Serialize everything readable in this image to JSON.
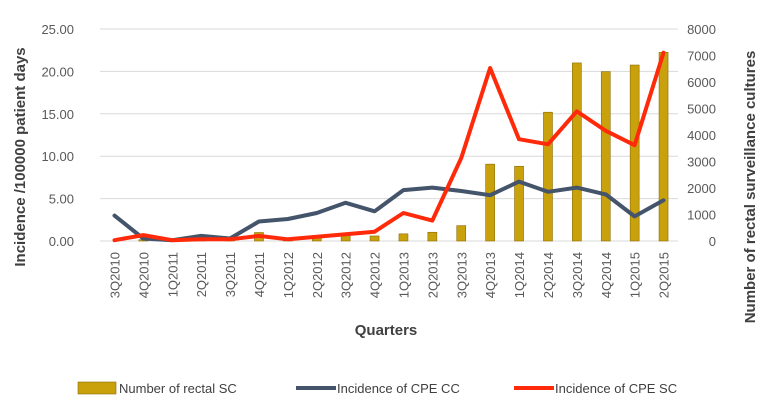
{
  "chart_data": {
    "type": "bar+line",
    "categories": [
      "3Q2010",
      "4Q2010",
      "1Q2011",
      "2Q2011",
      "3Q2011",
      "4Q2011",
      "1Q2012",
      "2Q2012",
      "3Q2012",
      "4Q2012",
      "1Q2013",
      "2Q2013",
      "3Q2013",
      "4Q2013",
      "1Q2014",
      "2Q2014",
      "3Q2014",
      "4Q2014",
      "1Q2015",
      "2Q2015"
    ],
    "xlabel": "Quarters",
    "ylabel_left": "Incidence /100000 patient days",
    "ylabel_right": "Number of rectal surveillance cultures",
    "ylim_left": [
      0,
      25
    ],
    "ylim_right": [
      0,
      8000
    ],
    "yticks_left": [
      "0.00",
      "5.00",
      "10.00",
      "15.00",
      "20.00",
      "25.00"
    ],
    "yticks_right": [
      "0",
      "1000",
      "2000",
      "3000",
      "4000",
      "5000",
      "6000",
      "7000",
      "8000"
    ],
    "grid": true,
    "legend_position": "bottom",
    "series": [
      {
        "name": "Number of rectal SC",
        "kind": "bar",
        "axis": "right",
        "color": "#c8a10d",
        "values": [
          0,
          50,
          30,
          60,
          50,
          320,
          100,
          160,
          240,
          190,
          270,
          330,
          580,
          2900,
          2820,
          4860,
          6720,
          6390,
          6640,
          7120
        ]
      },
      {
        "name": "Incidence of CPE CC",
        "kind": "line",
        "axis": "left",
        "color": "#44546a",
        "values": [
          3.0,
          0.3,
          0.1,
          0.6,
          0.3,
          2.3,
          2.6,
          3.3,
          4.5,
          3.5,
          6.0,
          6.3,
          5.9,
          5.4,
          7.0,
          5.8,
          6.3,
          5.5,
          2.9,
          4.8
        ]
      },
      {
        "name": "Incidence of CPE SC",
        "kind": "line",
        "axis": "left",
        "color": "#ff2a0a",
        "values": [
          0.1,
          0.7,
          0.1,
          0.2,
          0.2,
          0.6,
          0.2,
          0.5,
          0.8,
          1.1,
          3.3,
          2.4,
          9.8,
          20.4,
          12.0,
          11.4,
          15.3,
          13.0,
          11.3,
          22.2
        ]
      }
    ]
  }
}
